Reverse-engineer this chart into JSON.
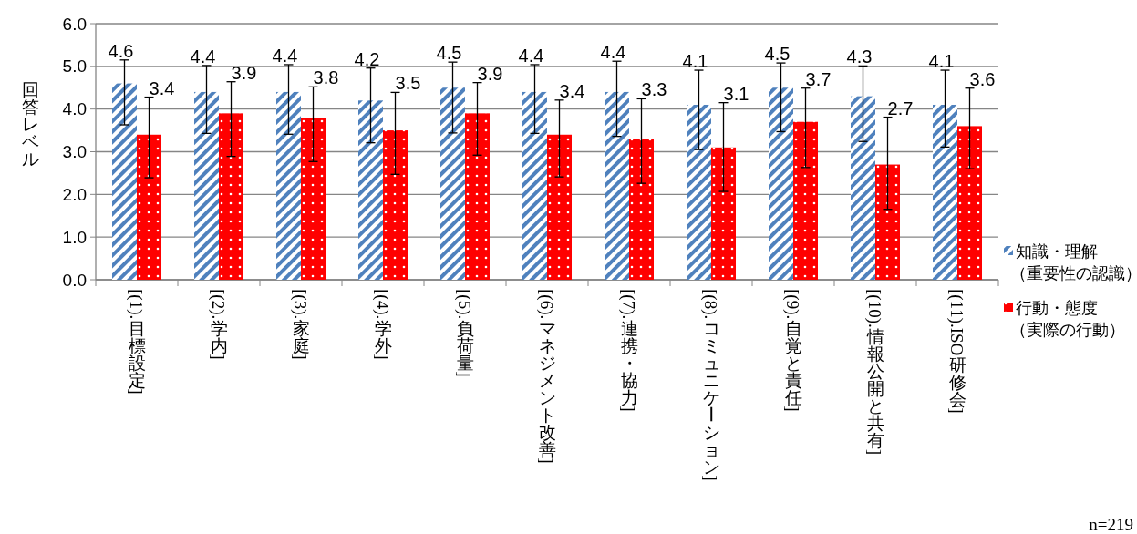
{
  "chart_data": {
    "type": "bar",
    "ylabel": "回答レベル",
    "categories": [
      "[(1).目標設定]",
      "[(2).学内]",
      "[(3).家庭]",
      "[(4).学外]",
      "[(5).負荷量]",
      "[(6).マネジメント改善]",
      "[(7).連携・協力]",
      "[(8).コミュニケーション]",
      "[(9).自覚と責任]",
      "[(10).情報公開と共有]",
      "[(11).ISO研修会]"
    ],
    "series": [
      {
        "name": "知識・理解（重要性の認識）",
        "color": "#4f81bd",
        "values": [
          4.6,
          4.4,
          4.4,
          4.2,
          4.5,
          4.4,
          4.4,
          4.1,
          4.5,
          4.3,
          4.1
        ],
        "errors": [
          [
            3.63,
            5.15
          ],
          [
            3.43,
            5.02
          ],
          [
            3.41,
            5.04
          ],
          [
            3.21,
            4.96
          ],
          [
            3.44,
            5.1
          ],
          [
            3.43,
            5.04
          ],
          [
            3.36,
            5.12
          ],
          [
            3.05,
            4.91
          ],
          [
            3.47,
            5.08
          ],
          [
            3.24,
            5.01
          ],
          [
            3.11,
            4.91
          ]
        ]
      },
      {
        "name": "行動・態度（実際の行動）",
        "color": "#ff0000",
        "values": [
          3.4,
          3.9,
          3.8,
          3.5,
          3.9,
          3.4,
          3.3,
          3.1,
          3.7,
          2.7,
          3.6
        ],
        "errors": [
          [
            2.39,
            4.28
          ],
          [
            2.89,
            4.64
          ],
          [
            2.77,
            4.52
          ],
          [
            2.47,
            4.39
          ],
          [
            2.92,
            4.62
          ],
          [
            2.41,
            4.21
          ],
          [
            2.26,
            4.24
          ],
          [
            2.07,
            4.15
          ],
          [
            2.63,
            4.49
          ],
          [
            1.65,
            3.81
          ],
          [
            2.6,
            4.49
          ]
        ]
      }
    ],
    "ylim": [
      0,
      6
    ],
    "yticks": [
      {
        "value": 0,
        "label": "0.0"
      },
      {
        "value": 1,
        "label": "1.0"
      },
      {
        "value": 2,
        "label": "2.0"
      },
      {
        "value": 3,
        "label": "3.0"
      },
      {
        "value": 4,
        "label": "4.0"
      },
      {
        "value": 5,
        "label": "5.0"
      },
      {
        "value": 6,
        "label": "6.0"
      }
    ],
    "grid": "y",
    "legend": "right",
    "data_labels": true,
    "annotations": [
      "n=219"
    ]
  }
}
